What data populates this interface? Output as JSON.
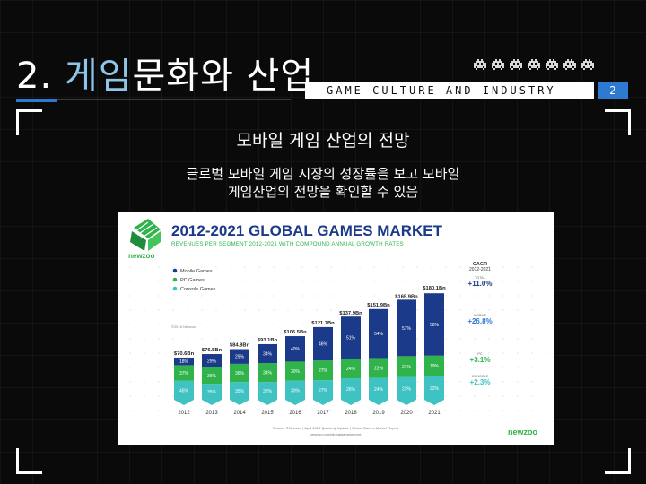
{
  "slide": {
    "title_prefix": "2. ",
    "title_highlight": "게임",
    "title_rest": "문화와 산업",
    "banner": "GAME CULTURE AND INDUSTRY",
    "page_number": "2",
    "subheading": "모바일 게임 산업의 전망",
    "description_line1": "글로벌 모바일 게임 시장의 성장률을 보고 모바일",
    "description_line2": "게임산업의 전망을 확인할 수 있음"
  },
  "colors": {
    "accent_blue": "#2e7ad1",
    "title_highlight": "#8fc6e8"
  },
  "icons": [
    "space-invader-icon",
    "space-invader-icon",
    "space-invader-icon",
    "space-invader-icon",
    "space-invader-icon",
    "space-invader-icon",
    "space-invader-icon"
  ],
  "chart_data": {
    "type": "bar",
    "stacked": true,
    "title": "2012-2021 GLOBAL GAMES MARKET",
    "subtitle": "REVENUES PER SEGMENT 2012-2021 WITH COMPOUND ANNUAL GROWTH RATES",
    "brand": "newzoo",
    "copyright": "©2018 Newzoo",
    "categories": [
      "2012",
      "2013",
      "2014",
      "2015",
      "2016",
      "2017",
      "2018",
      "2019",
      "2020",
      "2021"
    ],
    "totals": [
      70.6,
      76.5,
      84.8,
      93.1,
      106.5,
      121.7,
      137.9,
      151.9,
      165.9,
      180.1
    ],
    "total_labels": [
      "$70.6Bn",
      "$76.5Bn",
      "$84.8Bn",
      "$93.1Bn",
      "$106.5Bn",
      "$121.7Bn",
      "$137.9Bn",
      "$151.9Bn",
      "$165.9Bn",
      "$180.1Bn"
    ],
    "series": [
      {
        "name": "Console Games",
        "color": "#3ec2c2",
        "share_pct": [
          45,
          35,
          35,
          32,
          30,
          27,
          26,
          24,
          23,
          22
        ],
        "labels": [
          "45%",
          "35%",
          "35%",
          "32%",
          "30%",
          "27%",
          "26%",
          "24%",
          "23%",
          "22%"
        ]
      },
      {
        "name": "PC Games",
        "color": "#2fb34a",
        "share_pct": [
          37,
          36,
          36,
          34,
          30,
          27,
          24,
          22,
          21,
          19
        ],
        "labels": [
          "37%",
          "36%",
          "36%",
          "34%",
          "30%",
          "27%",
          "24%",
          "22%",
          "21%",
          "19%"
        ]
      },
      {
        "name": "Mobile Games",
        "color": "#1b3a8a",
        "share_pct": [
          18,
          29,
          29,
          34,
          40,
          46,
          51,
          54,
          57,
          58
        ],
        "labels": [
          "18%",
          "29%",
          "29%",
          "34%",
          "40%",
          "46%",
          "51%",
          "54%",
          "57%",
          "58%"
        ]
      }
    ],
    "legend_order": [
      "Mobile Games",
      "PC Games",
      "Console Games"
    ],
    "legend_position": "top-left",
    "cagr": {
      "header": "CAGR",
      "period": "2012-2021",
      "items": [
        {
          "label": "TOTAL",
          "value": "+11.0%",
          "color": "#1b3a8a"
        },
        {
          "label": "MOBILE",
          "value": "+26.8%",
          "color": "#2e7ad1"
        },
        {
          "label": "PC",
          "value": "+3.1%",
          "color": "#2fb34a"
        },
        {
          "label": "CONSOLE",
          "value": "+2.3%",
          "color": "#3ec2c2"
        }
      ]
    },
    "source_line1": "Source: ©Newzoo | April 2018 Quarterly Update | Global Games Market Report",
    "source_line2": "newzoo.com/globalgamesreport",
    "ylim": [
      0,
      180.1
    ],
    "grid": false
  }
}
